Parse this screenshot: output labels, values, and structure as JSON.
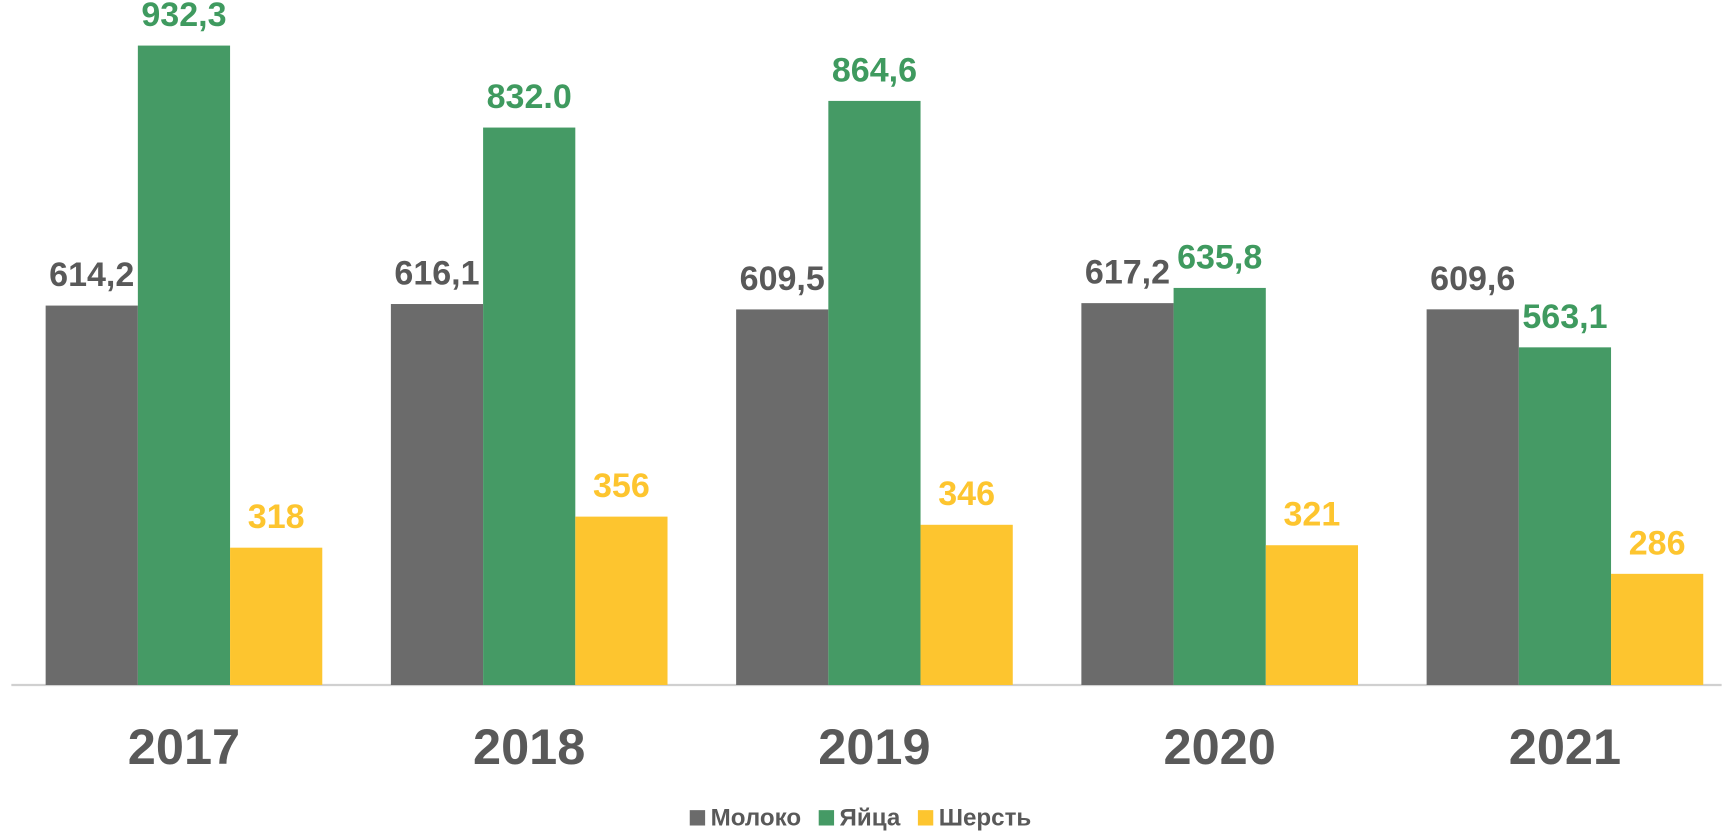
{
  "chart_data": {
    "type": "bar",
    "categories": [
      "2017",
      "2018",
      "2019",
      "2020",
      "2021"
    ],
    "series": [
      {
        "name": "Молоко",
        "color": "#6b6b6b",
        "values": [
          614.2,
          616.1,
          609.5,
          617.2,
          609.6
        ],
        "value_labels": [
          "614,2",
          "616,1",
          "609,5",
          "617,2",
          "609,6"
        ]
      },
      {
        "name": "Яйца",
        "color": "#459a65",
        "values": [
          932.3,
          832.0,
          864.6,
          635.8,
          563.1
        ],
        "value_labels": [
          "932,3",
          "832.0",
          "864,6",
          "635,8",
          "563,1"
        ]
      },
      {
        "name": "Шерсть",
        "color": "#fdc52f",
        "values": [
          318,
          356,
          346,
          321,
          286
        ]
      }
    ],
    "ylim": [
      150,
      980
    ],
    "legend": "bottom"
  }
}
